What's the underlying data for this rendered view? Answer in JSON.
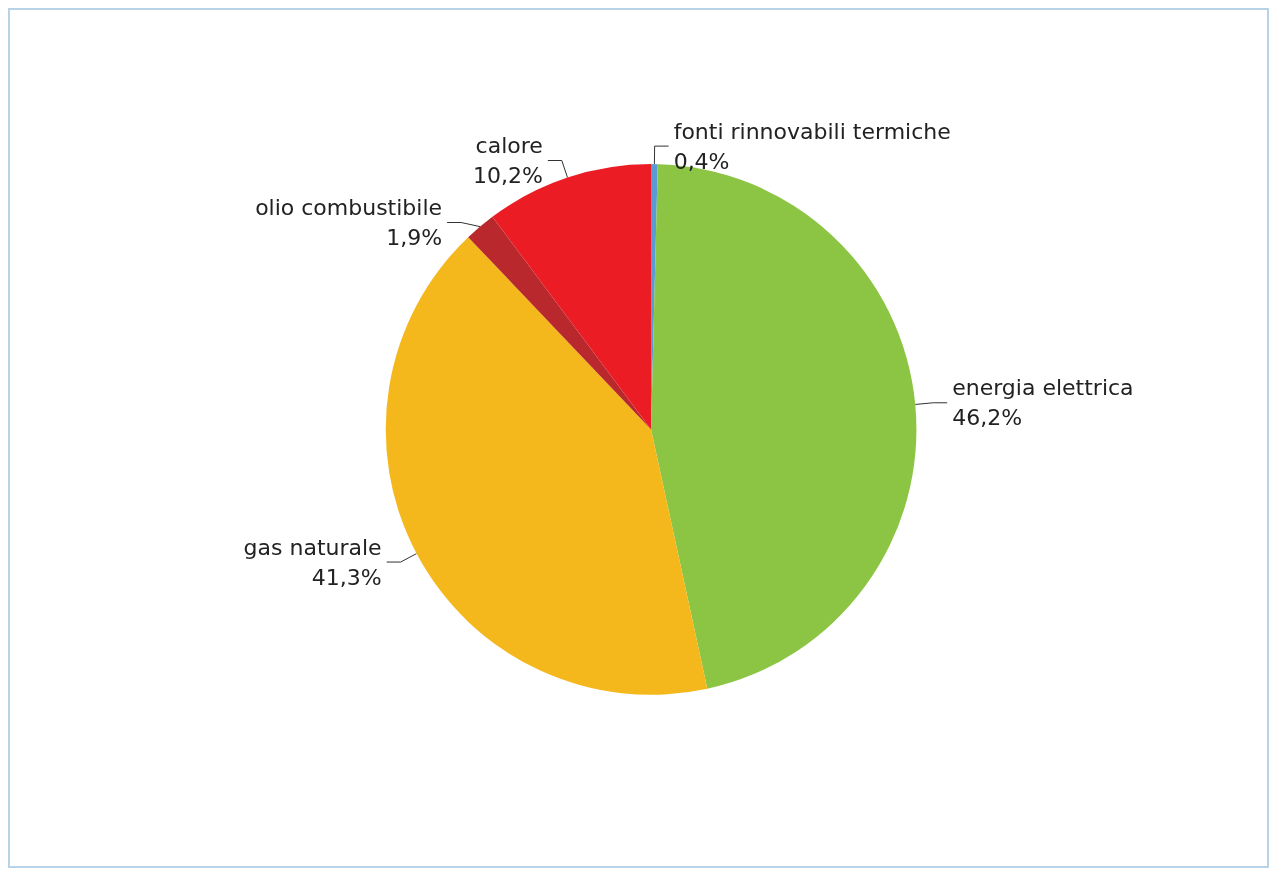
{
  "chart_data": {
    "type": "pie",
    "categories": [
      "fonti rinnovabili termiche",
      "energia elettrica",
      "gas naturale",
      "olio combustibile",
      "calore"
    ],
    "values": [
      0.4,
      46.2,
      41.3,
      1.9,
      10.2
    ],
    "value_labels": [
      "0,4%",
      "46,2%",
      "41,3%",
      "1,9%",
      "10,2%"
    ],
    "colors": [
      "#5b9bd5",
      "#8cc544",
      "#f4b81c",
      "#b8282c",
      "#ec1c24"
    ],
    "legend": false
  }
}
